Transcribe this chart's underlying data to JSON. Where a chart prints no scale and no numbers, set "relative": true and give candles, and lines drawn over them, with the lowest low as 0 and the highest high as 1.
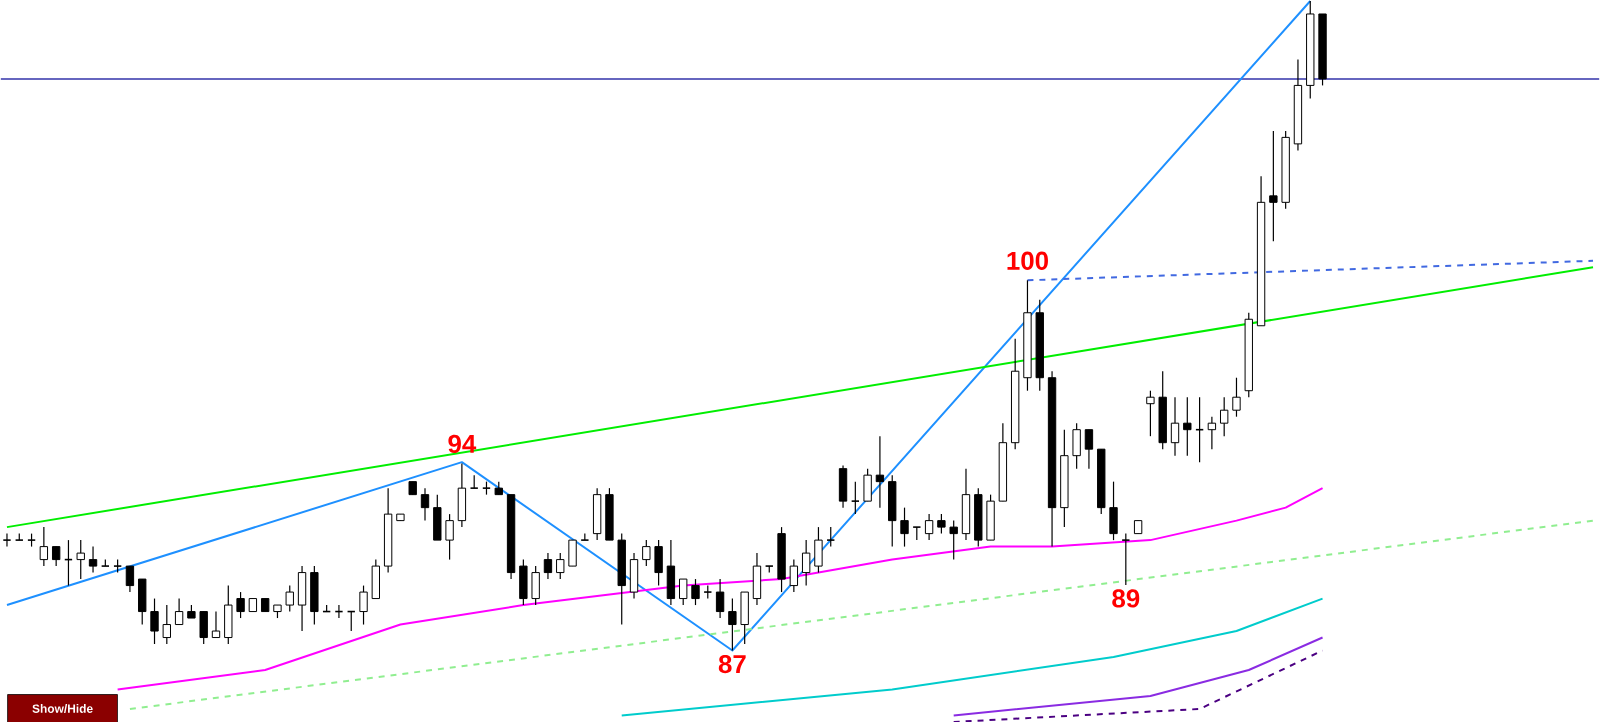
{
  "chart_data": {
    "type": "candlestick",
    "relative": true,
    "categories": [
      null,
      null,
      null,
      null,
      null,
      null,
      null,
      null,
      null,
      null,
      null,
      null,
      null,
      null,
      null,
      null,
      null,
      null,
      null,
      null,
      null,
      null,
      null,
      null,
      null,
      null,
      null,
      null,
      null,
      null,
      null,
      null,
      null,
      null,
      null,
      null,
      null,
      null,
      null,
      null,
      null,
      null,
      null,
      null,
      null,
      null,
      null,
      null,
      null,
      null,
      null,
      null,
      null,
      null,
      null,
      null,
      null,
      null,
      null,
      null,
      null,
      null,
      null,
      null,
      null,
      null,
      null,
      null,
      null,
      null,
      null,
      null,
      null,
      null,
      null,
      null,
      null,
      null,
      null,
      null,
      null,
      null,
      null,
      null,
      null,
      null,
      null,
      null,
      null,
      null,
      null,
      null,
      null,
      null,
      null,
      null,
      null,
      null,
      null,
      null,
      null,
      null,
      null,
      null,
      null,
      null,
      null,
      null,
      null,
      null,
      null,
      null,
      null,
      null,
      null,
      null,
      null,
      null,
      null,
      null,
      null,
      null,
      null,
      null,
      null,
      null,
      null,
      null,
      null,
      null
    ],
    "ohlc": [
      [
        0.17,
        0.18,
        0.16,
        0.17
      ],
      [
        0.17,
        0.18,
        0.17,
        0.17
      ],
      [
        0.17,
        0.18,
        0.16,
        0.17
      ],
      [
        0.14,
        0.19,
        0.13,
        0.16
      ],
      [
        0.16,
        0.16,
        0.13,
        0.14
      ],
      [
        0.14,
        0.17,
        0.1,
        0.14
      ],
      [
        0.14,
        0.17,
        0.11,
        0.15
      ],
      [
        0.14,
        0.16,
        0.12,
        0.13
      ],
      [
        0.13,
        0.14,
        0.13,
        0.13
      ],
      [
        0.13,
        0.14,
        0.12,
        0.13
      ],
      [
        0.13,
        0.13,
        0.09,
        0.1
      ],
      [
        0.11,
        0.11,
        0.04,
        0.06
      ],
      [
        0.06,
        0.08,
        0.01,
        0.03
      ],
      [
        0.02,
        0.07,
        0.01,
        0.04
      ],
      [
        0.04,
        0.08,
        0.04,
        0.06
      ],
      [
        0.06,
        0.07,
        0.05,
        0.05
      ],
      [
        0.06,
        0.06,
        0.01,
        0.02
      ],
      [
        0.02,
        0.06,
        0.02,
        0.03
      ],
      [
        0.02,
        0.1,
        0.01,
        0.07
      ],
      [
        0.08,
        0.09,
        0.05,
        0.06
      ],
      [
        0.06,
        0.08,
        0.06,
        0.08
      ],
      [
        0.08,
        0.08,
        0.06,
        0.06
      ],
      [
        0.06,
        0.07,
        0.05,
        0.07
      ],
      [
        0.07,
        0.1,
        0.06,
        0.09
      ],
      [
        0.07,
        0.13,
        0.03,
        0.12
      ],
      [
        0.12,
        0.13,
        0.04,
        0.06
      ],
      [
        0.06,
        0.07,
        0.06,
        0.06
      ],
      [
        0.06,
        0.07,
        0.05,
        0.06
      ],
      [
        0.06,
        0.06,
        0.03,
        0.06
      ],
      [
        0.06,
        0.1,
        0.04,
        0.09
      ],
      [
        0.08,
        0.14,
        0.08,
        0.13
      ],
      [
        0.13,
        0.25,
        0.12,
        0.21
      ],
      [
        0.2,
        0.21,
        0.2,
        0.21
      ],
      [
        0.26,
        0.26,
        0.24,
        0.24
      ],
      [
        0.24,
        0.25,
        0.2,
        0.22
      ],
      [
        0.22,
        0.24,
        0.17,
        0.17
      ],
      [
        0.17,
        0.21,
        0.14,
        0.2
      ],
      [
        0.2,
        0.288,
        0.19,
        0.25
      ],
      [
        0.25,
        0.27,
        0.25,
        0.25
      ],
      [
        0.25,
        0.26,
        0.24,
        0.25
      ],
      [
        0.25,
        0.26,
        0.24,
        0.24
      ],
      [
        0.24,
        0.24,
        0.11,
        0.12
      ],
      [
        0.13,
        0.14,
        0.07,
        0.08
      ],
      [
        0.08,
        0.13,
        0.07,
        0.12
      ],
      [
        0.14,
        0.15,
        0.11,
        0.12
      ],
      [
        0.12,
        0.15,
        0.11,
        0.14
      ],
      [
        0.13,
        0.17,
        0.13,
        0.17
      ],
      [
        0.17,
        0.18,
        0.17,
        0.17
      ],
      [
        0.18,
        0.25,
        0.17,
        0.24
      ],
      [
        0.24,
        0.25,
        0.17,
        0.17
      ],
      [
        0.17,
        0.18,
        0.04,
        0.1
      ],
      [
        0.09,
        0.15,
        0.08,
        0.14
      ],
      [
        0.14,
        0.17,
        0.13,
        0.16
      ],
      [
        0.16,
        0.17,
        0.1,
        0.12
      ],
      [
        0.13,
        0.17,
        0.07,
        0.08
      ],
      [
        0.08,
        0.11,
        0.07,
        0.11
      ],
      [
        0.1,
        0.11,
        0.07,
        0.08
      ],
      [
        0.09,
        0.1,
        0.08,
        0.09
      ],
      [
        0.09,
        0.11,
        0.05,
        0.06
      ],
      [
        0.06,
        0.08,
        0,
        0.04
      ],
      [
        0.04,
        0.09,
        0.01,
        0.09
      ],
      [
        0.08,
        0.15,
        0.07,
        0.13
      ],
      [
        0.13,
        0.13,
        0.12,
        0.13
      ],
      [
        0.18,
        0.19,
        0.09,
        0.11
      ],
      [
        0.1,
        0.14,
        0.09,
        0.13
      ],
      [
        0.12,
        0.17,
        0.1,
        0.15
      ],
      [
        0.13,
        0.19,
        0.12,
        0.17
      ],
      [
        0.17,
        0.19,
        0.16,
        0.17
      ],
      [
        0.28,
        0.285,
        0.22,
        0.23
      ],
      [
        0.23,
        0.26,
        0.21,
        0.23
      ],
      [
        0.23,
        0.28,
        0.23,
        0.27
      ],
      [
        0.27,
        0.33,
        0.22,
        0.26
      ],
      [
        0.26,
        0.27,
        0.16,
        0.2
      ],
      [
        0.2,
        0.22,
        0.16,
        0.18
      ],
      [
        0.19,
        0.19,
        0.17,
        0.19
      ],
      [
        0.18,
        0.21,
        0.17,
        0.2
      ],
      [
        0.2,
        0.21,
        0.18,
        0.19
      ],
      [
        0.19,
        0.2,
        0.14,
        0.18
      ],
      [
        0.18,
        0.28,
        0.17,
        0.24
      ],
      [
        0.24,
        0.25,
        0.16,
        0.17
      ],
      [
        0.17,
        0.24,
        0.17,
        0.23
      ],
      [
        0.23,
        0.35,
        0.23,
        0.32
      ],
      [
        0.32,
        0.48,
        0.31,
        0.43
      ],
      [
        0.42,
        0.57,
        0.4,
        0.52
      ],
      [
        0.52,
        0.54,
        0.4,
        0.42
      ],
      [
        0.42,
        0.43,
        0.16,
        0.22
      ],
      [
        0.22,
        0.34,
        0.19,
        0.3
      ],
      [
        0.3,
        0.35,
        0.28,
        0.34
      ],
      [
        0.34,
        0.34,
        0.28,
        0.31
      ],
      [
        0.31,
        0.31,
        0.21,
        0.22
      ],
      [
        0.22,
        0.26,
        0.17,
        0.18
      ],
      [
        0.17,
        0.18,
        0.101,
        0.17
      ],
      [
        0.18,
        0.2,
        0.18,
        0.2
      ],
      [
        0.38,
        0.4,
        0.33,
        0.39
      ],
      [
        0.39,
        0.43,
        0.31,
        0.32
      ],
      [
        0.32,
        0.39,
        0.3,
        0.35
      ],
      [
        0.35,
        0.39,
        0.3,
        0.34
      ],
      [
        0.34,
        0.39,
        0.29,
        0.34
      ],
      [
        0.34,
        0.36,
        0.31,
        0.35
      ],
      [
        0.35,
        0.39,
        0.33,
        0.37
      ],
      [
        0.37,
        0.42,
        0.36,
        0.39
      ],
      [
        0.4,
        0.52,
        0.39,
        0.51
      ],
      [
        0.5,
        0.73,
        0.5,
        0.69
      ],
      [
        0.7,
        0.8,
        0.63,
        0.69
      ],
      [
        0.69,
        0.8,
        0.68,
        0.79
      ],
      [
        0.78,
        0.91,
        0.77,
        0.87
      ],
      [
        0.87,
        1,
        0.85,
        0.98
      ],
      [
        0.98,
        0.98,
        0.87,
        0.88
      ],
      null,
      null,
      null,
      null,
      null,
      null,
      null,
      null,
      null,
      null,
      null,
      null,
      null,
      null,
      null,
      null,
      null,
      null,
      null,
      null,
      null,
      null
    ],
    "series": [
      {
        "type": "line",
        "color": "#1e90ff",
        "values": [
          0.07,
          null,
          null,
          null,
          null,
          null,
          null,
          null,
          null,
          null,
          null,
          null,
          null,
          null,
          null,
          null,
          null,
          null,
          null,
          null,
          null,
          null,
          null,
          null,
          null,
          null,
          null,
          null,
          null,
          null,
          null,
          null,
          null,
          null,
          null,
          null,
          null,
          0.29,
          null,
          null,
          null,
          null,
          null,
          null,
          null,
          null,
          null,
          null,
          null,
          null,
          null,
          null,
          null,
          null,
          null,
          null,
          null,
          null,
          null,
          0,
          null,
          null,
          null,
          null,
          null,
          null,
          null,
          null,
          null,
          null,
          null,
          null,
          null,
          null,
          null,
          null,
          null,
          null,
          null,
          null,
          null,
          null,
          null,
          null,
          null,
          null,
          null,
          null,
          null,
          null,
          null,
          null,
          null,
          null,
          null,
          null,
          null,
          null,
          null,
          null,
          null,
          null,
          null,
          null,
          null,
          null,
          1,
          null,
          null,
          null,
          null,
          null,
          null,
          null,
          null,
          null,
          null,
          null,
          null,
          null,
          null,
          null,
          null,
          null,
          null,
          null,
          null,
          null,
          null,
          null
        ]
      },
      {
        "type": "line",
        "color": "#00ee00",
        "values": [
          0.19,
          null,
          null,
          null,
          null,
          null,
          null,
          null,
          null,
          null,
          null,
          null,
          null,
          null,
          null,
          null,
          null,
          null,
          null,
          null,
          null,
          null,
          null,
          null,
          null,
          null,
          null,
          null,
          null,
          null,
          null,
          null,
          null,
          null,
          null,
          null,
          null,
          null,
          null,
          null,
          null,
          null,
          null,
          null,
          null,
          null,
          null,
          null,
          null,
          null,
          null,
          null,
          null,
          null,
          null,
          null,
          null,
          null,
          null,
          null,
          null,
          null,
          null,
          null,
          null,
          null,
          null,
          null,
          null,
          null,
          null,
          null,
          null,
          null,
          null,
          null,
          null,
          null,
          null,
          null,
          null,
          null,
          null,
          null,
          null,
          null,
          null,
          null,
          null,
          null,
          null,
          null,
          null,
          null,
          null,
          null,
          null,
          null,
          null,
          null,
          null,
          null,
          null,
          null,
          null,
          null,
          null,
          null,
          null,
          null,
          null,
          null,
          null,
          null,
          null,
          null,
          null,
          null,
          null,
          null,
          null,
          null,
          null,
          null,
          null,
          null,
          null,
          null,
          null,
          0.59
        ]
      },
      {
        "type": "line",
        "color": "#4169e1",
        "line_style": "dashed",
        "values": [
          null,
          null,
          null,
          null,
          null,
          null,
          null,
          null,
          null,
          null,
          null,
          null,
          null,
          null,
          null,
          null,
          null,
          null,
          null,
          null,
          null,
          null,
          null,
          null,
          null,
          null,
          null,
          null,
          null,
          null,
          null,
          null,
          null,
          null,
          null,
          null,
          null,
          null,
          null,
          null,
          null,
          null,
          null,
          null,
          null,
          null,
          null,
          null,
          null,
          null,
          null,
          null,
          null,
          null,
          null,
          null,
          null,
          null,
          null,
          null,
          null,
          null,
          null,
          null,
          null,
          null,
          null,
          null,
          null,
          null,
          null,
          null,
          null,
          null,
          null,
          null,
          null,
          null,
          null,
          null,
          null,
          null,
          null,
          0.57,
          null,
          null,
          null,
          null,
          null,
          null,
          null,
          null,
          null,
          null,
          null,
          null,
          null,
          null,
          null,
          null,
          null,
          null,
          null,
          null,
          null,
          null,
          null,
          null,
          null,
          null,
          null,
          null,
          null,
          null,
          null,
          null,
          null,
          null,
          null,
          null,
          null,
          null,
          null,
          null,
          null,
          null,
          null,
          null,
          null,
          0.6
        ]
      },
      {
        "type": "line",
        "color": "#ff00ff",
        "values": [
          null,
          null,
          null,
          null,
          null,
          null,
          null,
          null,
          null,
          -0.06,
          null,
          null,
          null,
          null,
          null,
          null,
          null,
          null,
          null,
          null,
          null,
          -0.03,
          null,
          null,
          null,
          null,
          null,
          null,
          null,
          null,
          null,
          null,
          0.04,
          null,
          null,
          null,
          null,
          null,
          null,
          null,
          null,
          null,
          0.07,
          null,
          null,
          null,
          null,
          null,
          null,
          null,
          null,
          null,
          null,
          null,
          null,
          0.1,
          null,
          null,
          null,
          null,
          null,
          null,
          null,
          0.11,
          null,
          null,
          null,
          null,
          null,
          null,
          null,
          null,
          0.14,
          null,
          null,
          null,
          null,
          null,
          null,
          null,
          0.16,
          null,
          null,
          null,
          null,
          0.16,
          null,
          null,
          null,
          null,
          null,
          null,
          null,
          0.17,
          null,
          null,
          null,
          null,
          null,
          null,
          0.2,
          null,
          null,
          null,
          0.22,
          null,
          null,
          0.25,
          null,
          null,
          null,
          null,
          null,
          null,
          null,
          null,
          null,
          null,
          null,
          null,
          null,
          null,
          null,
          null,
          null,
          null,
          null,
          null,
          null,
          null
        ]
      },
      {
        "type": "line",
        "color": "#90ee90",
        "line_style": "dashed",
        "values": [
          null,
          null,
          null,
          null,
          null,
          null,
          null,
          null,
          null,
          null,
          -0.09,
          null,
          null,
          null,
          null,
          null,
          null,
          null,
          null,
          null,
          null,
          null,
          null,
          null,
          null,
          null,
          null,
          null,
          null,
          null,
          null,
          null,
          null,
          null,
          null,
          null,
          null,
          null,
          null,
          null,
          null,
          null,
          null,
          null,
          null,
          null,
          null,
          null,
          null,
          null,
          null,
          null,
          null,
          null,
          null,
          null,
          null,
          null,
          null,
          null,
          null,
          null,
          null,
          null,
          null,
          null,
          null,
          null,
          null,
          null,
          null,
          null,
          null,
          null,
          null,
          null,
          null,
          null,
          null,
          null,
          null,
          null,
          null,
          null,
          null,
          null,
          null,
          null,
          null,
          null,
          null,
          null,
          null,
          null,
          null,
          null,
          null,
          null,
          null,
          null,
          null,
          null,
          null,
          null,
          null,
          null,
          null,
          null,
          null,
          null,
          null,
          null,
          null,
          null,
          null,
          null,
          null,
          null,
          null,
          null,
          null,
          null,
          null,
          null,
          null,
          null,
          null,
          null,
          null,
          0.2
        ]
      },
      {
        "type": "line",
        "color": "#00cccc",
        "values": [
          null,
          null,
          null,
          null,
          null,
          null,
          null,
          null,
          null,
          null,
          null,
          null,
          null,
          null,
          null,
          null,
          null,
          null,
          null,
          null,
          null,
          null,
          null,
          null,
          null,
          null,
          null,
          null,
          null,
          null,
          null,
          null,
          null,
          null,
          null,
          null,
          null,
          null,
          null,
          null,
          null,
          null,
          null,
          null,
          null,
          null,
          null,
          null,
          null,
          null,
          -0.1,
          null,
          null,
          null,
          null,
          null,
          null,
          null,
          null,
          null,
          null,
          null,
          null,
          null,
          null,
          null,
          null,
          null,
          null,
          null,
          null,
          null,
          -0.06,
          null,
          null,
          null,
          null,
          null,
          null,
          null,
          null,
          null,
          null,
          null,
          null,
          null,
          null,
          null,
          null,
          null,
          -0.01,
          null,
          null,
          null,
          null,
          null,
          null,
          null,
          null,
          null,
          0.03,
          null,
          null,
          null,
          null,
          null,
          null,
          0.08,
          null,
          null,
          null,
          null,
          null,
          null,
          null,
          null,
          null,
          null,
          null,
          null,
          null,
          null,
          null,
          null,
          null,
          null,
          null,
          null,
          null,
          null
        ]
      },
      {
        "type": "line",
        "color": "#8a2be2",
        "values": [
          null,
          null,
          null,
          null,
          null,
          null,
          null,
          null,
          null,
          null,
          null,
          null,
          null,
          null,
          null,
          null,
          null,
          null,
          null,
          null,
          null,
          null,
          null,
          null,
          null,
          null,
          null,
          null,
          null,
          null,
          null,
          null,
          null,
          null,
          null,
          null,
          null,
          null,
          null,
          null,
          null,
          null,
          null,
          null,
          null,
          null,
          null,
          null,
          null,
          null,
          null,
          null,
          null,
          null,
          null,
          null,
          null,
          null,
          null,
          null,
          null,
          null,
          null,
          null,
          null,
          null,
          null,
          null,
          null,
          null,
          null,
          null,
          null,
          null,
          null,
          null,
          null,
          -0.1,
          null,
          null,
          null,
          null,
          null,
          null,
          null,
          null,
          null,
          null,
          null,
          null,
          null,
          null,
          null,
          -0.07,
          null,
          null,
          null,
          null,
          null,
          null,
          null,
          -0.03,
          null,
          null,
          null,
          null,
          null,
          0.02,
          null,
          null,
          null,
          null,
          null,
          null,
          null,
          null,
          null,
          null,
          null,
          null,
          null,
          null,
          null,
          null,
          null,
          null,
          null,
          null,
          null,
          null
        ]
      },
      {
        "type": "line",
        "color": "#4b0082",
        "line_style": "dashed",
        "values": [
          null,
          null,
          null,
          null,
          null,
          null,
          null,
          null,
          null,
          null,
          null,
          null,
          null,
          null,
          null,
          null,
          null,
          null,
          null,
          null,
          null,
          null,
          null,
          null,
          null,
          null,
          null,
          null,
          null,
          null,
          null,
          null,
          null,
          null,
          null,
          null,
          null,
          null,
          null,
          null,
          null,
          null,
          null,
          null,
          null,
          null,
          null,
          null,
          null,
          null,
          null,
          null,
          null,
          null,
          null,
          null,
          null,
          null,
          null,
          null,
          null,
          null,
          null,
          null,
          null,
          null,
          null,
          null,
          null,
          null,
          null,
          null,
          null,
          null,
          null,
          null,
          null,
          -0.11,
          null,
          null,
          null,
          null,
          null,
          null,
          null,
          null,
          null,
          null,
          null,
          null,
          null,
          null,
          null,
          null,
          null,
          null,
          null,
          -0.09,
          null,
          null,
          null,
          null,
          null,
          null,
          null,
          null,
          null,
          0.0,
          null,
          null,
          null,
          null,
          null,
          null,
          null,
          null,
          null,
          null,
          null,
          null,
          null,
          null,
          null,
          null,
          null,
          null,
          null,
          null,
          null,
          null
        ]
      }
    ],
    "ref_lines": [
      {
        "axis": "y",
        "value": 0.88,
        "color": "#3333aa"
      }
    ],
    "annotations": [
      {
        "text": "94",
        "y": 0.288
      },
      {
        "text": "100",
        "y": 0.57
      },
      {
        "text": "87",
        "y": 0
      },
      {
        "text": "89",
        "y": 0.101
      },
      "Show/Hide"
    ]
  }
}
